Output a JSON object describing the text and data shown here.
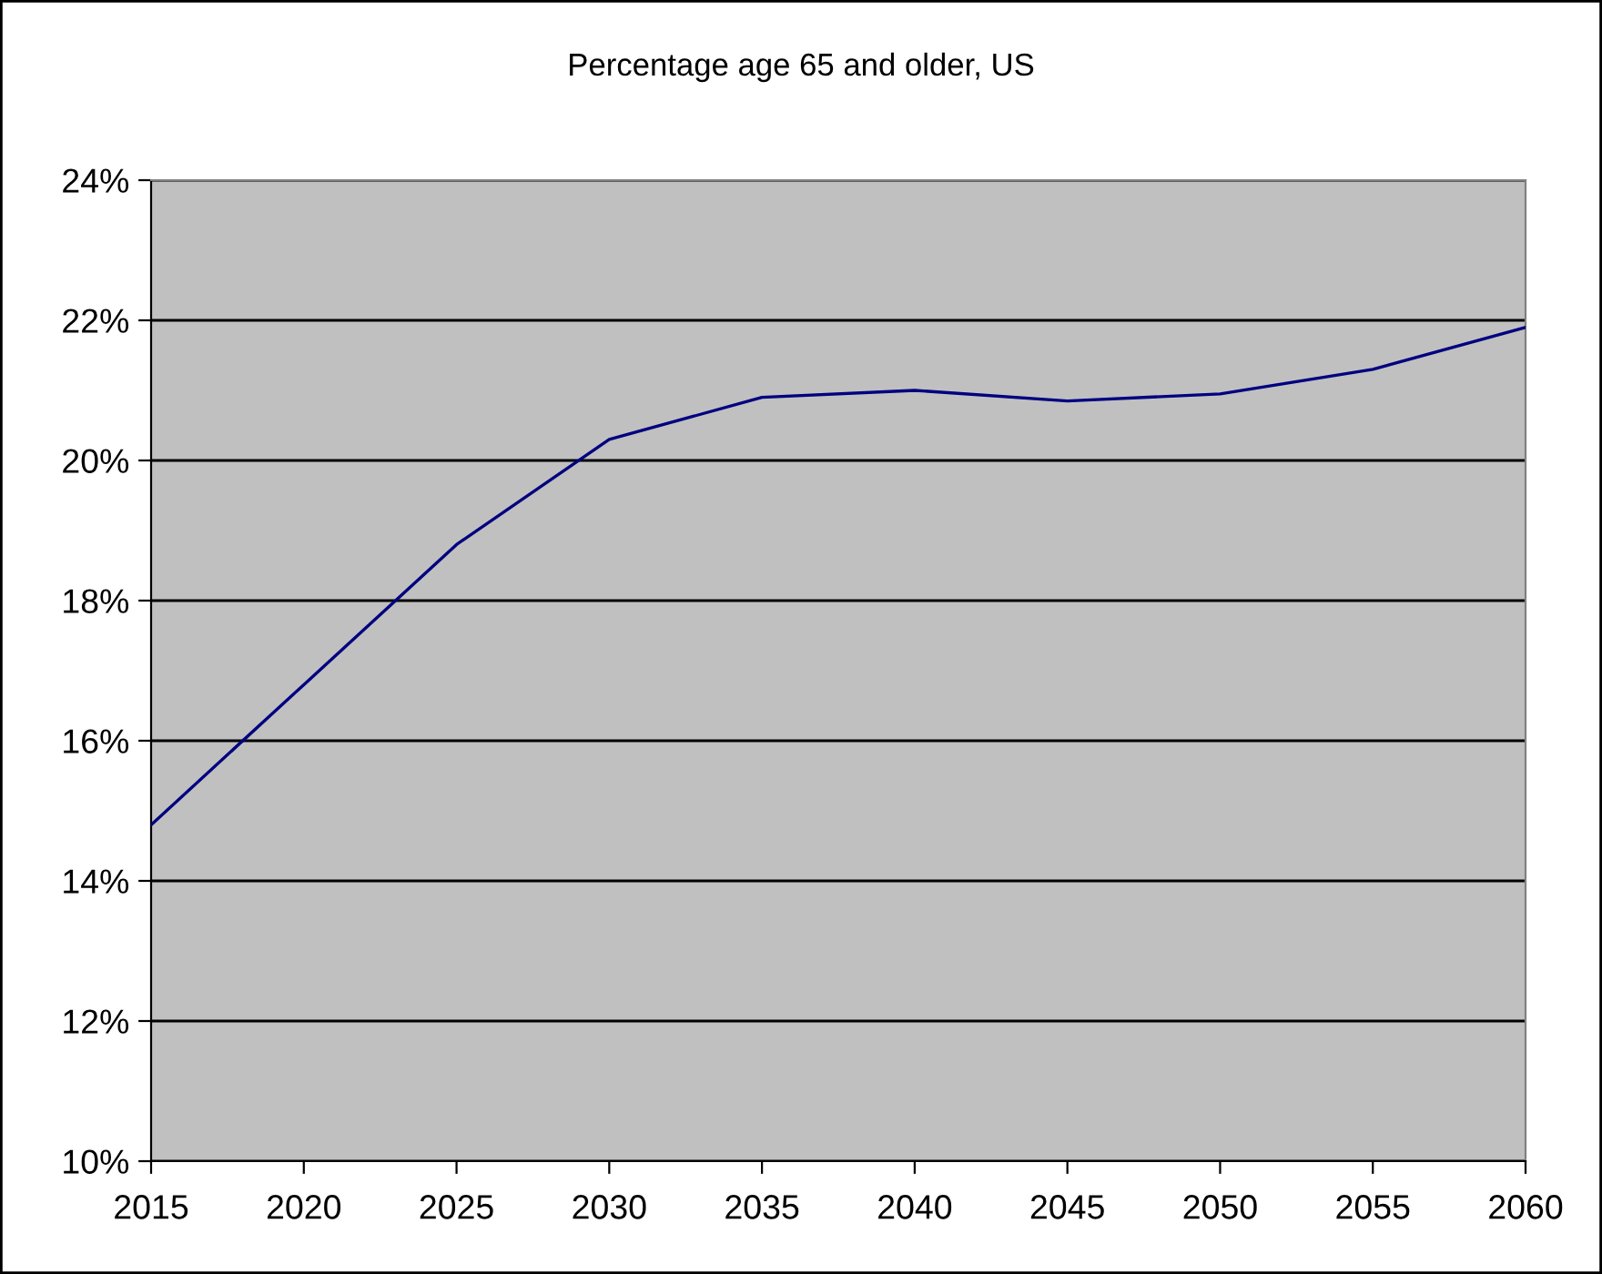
{
  "chart_data": {
    "type": "line",
    "title": "Percentage age 65 and older, US",
    "x": [
      2015,
      2020,
      2025,
      2030,
      2035,
      2040,
      2045,
      2050,
      2055,
      2060
    ],
    "series": [
      {
        "color": "#000080",
        "values": [
          14.8,
          16.8,
          18.8,
          20.3,
          20.9,
          21.0,
          20.85,
          20.95,
          21.3,
          21.9
        ]
      }
    ],
    "xlim": [
      2015,
      2060
    ],
    "xticks": [
      2015,
      2020,
      2025,
      2030,
      2035,
      2040,
      2045,
      2050,
      2055,
      2060
    ],
    "ylim": [
      10,
      24
    ],
    "yticks": [
      {
        "value": 10,
        "label": "10%"
      },
      {
        "value": 12,
        "label": "12%"
      },
      {
        "value": 14,
        "label": "14%"
      },
      {
        "value": 16,
        "label": "16%"
      },
      {
        "value": 18,
        "label": "18%"
      },
      {
        "value": 20,
        "label": "20%"
      },
      {
        "value": 22,
        "label": "22%"
      },
      {
        "value": 24,
        "label": "24%"
      }
    ],
    "grid": "y",
    "marker": "none",
    "line_style": "solid"
  }
}
